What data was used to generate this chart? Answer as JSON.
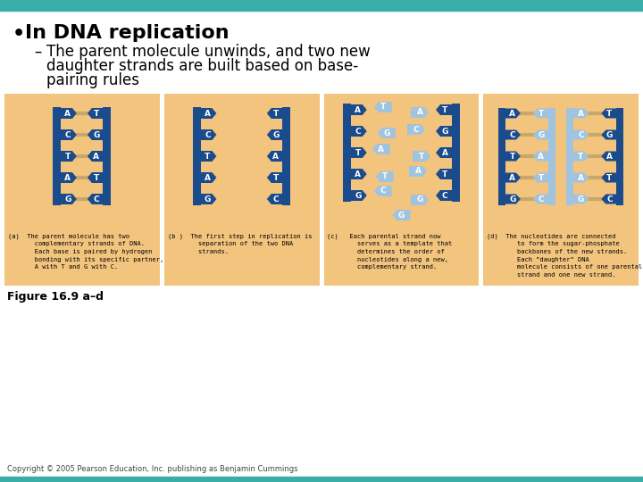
{
  "bg_color": "#ffffff",
  "teal_color": "#3aada8",
  "panel_bg": "#f2c47e",
  "dark_blue": "#1a4b8c",
  "light_blue": "#a0c4e0",
  "rung_color": "#c8a86a",
  "bullet_title": "In DNA replication",
  "sub_lines": [
    "The parent molecule unwinds, and two new",
    "daughter strands are built based on base-",
    "pairing rules"
  ],
  "figure_label": "Figure 16.9 a–d",
  "copyright": "Copyright © 2005 Pearson Education, Inc. publishing as Benjamin Cummings",
  "bases_left": [
    "A",
    "C",
    "T",
    "A",
    "G"
  ],
  "bases_right": [
    "T",
    "G",
    "A",
    "T",
    "C"
  ],
  "caption_a": [
    "(a)  The parent molecule has two",
    "       complementary strands of DNA.",
    "       Each base is paired by hydrogen",
    "       bonding with its specific partner,",
    "       A with T and G with C."
  ],
  "caption_b": [
    "(b )  The first step in replication is",
    "        separation of the two DNA",
    "        strands."
  ],
  "caption_c": [
    "(c)   Each parental strand now",
    "        serves as a template that",
    "        determines the order of",
    "        nucleotides along a new,",
    "        complementary strand."
  ],
  "caption_d": [
    "(d)  The nucleotides are connected",
    "        to form the sugar-phosphate",
    "        backbones of the new strands.",
    "        Each \"daughter\" DNA",
    "        molecule consists of one parental",
    "        strand and one new strand."
  ]
}
